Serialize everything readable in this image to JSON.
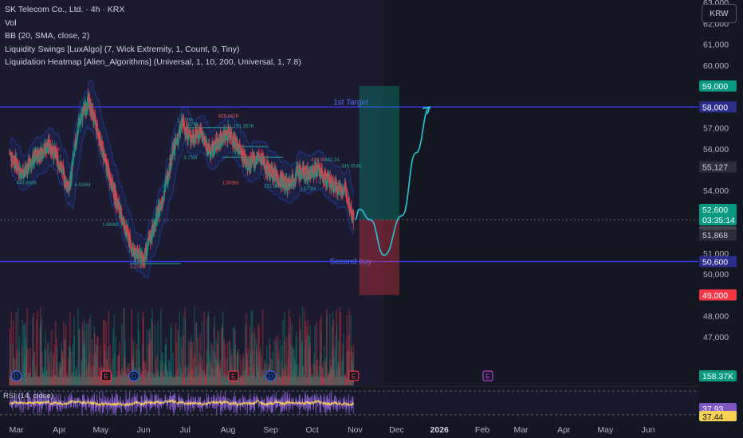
{
  "header": {
    "symbol_line": "SK Telecom Co., Ltd. · 4h · KRX",
    "indicators": [
      "Vol",
      "BB (20, SMA, close, 2)",
      "Liquidity Swings [LuxAlgo] (7, Wick Extremity, 1, Count, 0, Tiny)",
      "Liquidation Heatmap [Alien_Algorithms] (Universal, 1, 10, 200, Universal, 1, 7.8)"
    ]
  },
  "currency_button": "KRW",
  "price_axis": {
    "ticks": [
      "63,000",
      "62,000",
      "61,000",
      "60,000",
      "57,000",
      "56,000",
      "54,000",
      "51,000",
      "50,000",
      "48,000",
      "47,000"
    ],
    "labels": [
      {
        "text": "59,000",
        "bg": "#089981",
        "fg": "#ffffff"
      },
      {
        "text": "58,000",
        "bg": "#2a2e8a",
        "fg": "#ffffff"
      },
      {
        "text": "55,127",
        "bg": "#2a2e39",
        "fg": "#d1d4dc"
      },
      {
        "text": "52,600",
        "bg": "#089981",
        "fg": "#ffffff"
      },
      {
        "text": "03:35:14",
        "bg": "#089981",
        "fg": "#ffffff"
      },
      {
        "text": "52,600",
        "bg": "#434651",
        "fg": "#ffffff"
      },
      {
        "text": "51,868",
        "bg": "#2a2e39",
        "fg": "#d1d4dc"
      },
      {
        "text": "50,600",
        "bg": "#2a2e8a",
        "fg": "#ffffff"
      },
      {
        "text": "49,000",
        "bg": "#f23645",
        "fg": "#ffffff"
      },
      {
        "text": "158.37K",
        "bg": "#089981",
        "fg": "#ffffff"
      }
    ]
  },
  "time_axis": {
    "labels": [
      {
        "text": "Mar",
        "value": "2025-03"
      },
      {
        "text": "Apr",
        "value": "2025-04"
      },
      {
        "text": "May",
        "value": "2025-05"
      },
      {
        "text": "Jun",
        "value": "2025-06"
      },
      {
        "text": "Jul",
        "value": "2025-07"
      },
      {
        "text": "Aug",
        "value": "2025-08"
      },
      {
        "text": "Sep",
        "value": "2025-09"
      },
      {
        "text": "Oct",
        "value": "2025-10"
      },
      {
        "text": "Nov",
        "value": "2025-11"
      },
      {
        "text": "Dec",
        "value": "2025-12"
      },
      {
        "text": "2026",
        "value": "2026-01"
      },
      {
        "text": "Feb",
        "value": "2026-02"
      },
      {
        "text": "Mar",
        "value": "2026-03"
      },
      {
        "text": "Apr",
        "value": "2026-04"
      },
      {
        "text": "May",
        "value": "2026-05"
      },
      {
        "text": "Jun",
        "value": "2026-06"
      }
    ]
  },
  "annotations": {
    "target_line": {
      "label": "1st Target",
      "price": 58000
    },
    "second_buy_line": {
      "label": "Second buy",
      "price": 50600
    },
    "position": {
      "target": 59000,
      "entry": 52600,
      "stop": 49000
    },
    "swing_labels": [
      "443.966K",
      "803.863K",
      "4.526M",
      "1.869M",
      "1.210M",
      "1.987M",
      "379K",
      "428.642K",
      "151.367K",
      "3.73M",
      "1.003M",
      "151.846K",
      "3.573M",
      "477.05",
      "462.24",
      "345.054K"
    ]
  },
  "rsi": {
    "label": "RSI (14, close)",
    "value": "37.93",
    "ma_value": "37.44"
  },
  "event_markers": [
    {
      "type": "D",
      "date": "2025-03-01"
    },
    {
      "type": "E",
      "date": "2025-05-05"
    },
    {
      "type": "D",
      "date": "2025-05-25"
    },
    {
      "type": "E",
      "date": "2025-08-05"
    },
    {
      "type": "D",
      "date": "2025-09-01"
    },
    {
      "type": "E",
      "date": "2025-10-31"
    },
    {
      "type": "E",
      "date": "2026-02-05"
    }
  ],
  "colors": {
    "up": "#089981",
    "down": "#f23645",
    "target": "#3d3dff",
    "projection": "#26c6da",
    "rsi": "#7e57c2",
    "rsi_ma": "#f7d154"
  },
  "chart_data": {
    "type": "candlestick",
    "symbol": "SK Telecom Co., Ltd.",
    "interval": "4h",
    "y_range": [
      46500,
      63500
    ],
    "close_path": [
      {
        "x": "2025-02-24",
        "y": 55800
      },
      {
        "x": "2025-03-05",
        "y": 54800
      },
      {
        "x": "2025-03-15",
        "y": 55600
      },
      {
        "x": "2025-03-25",
        "y": 56200
      },
      {
        "x": "2025-04-01",
        "y": 55300
      },
      {
        "x": "2025-04-08",
        "y": 54000
      },
      {
        "x": "2025-04-15",
        "y": 57200
      },
      {
        "x": "2025-04-22",
        "y": 58300
      },
      {
        "x": "2025-04-28",
        "y": 57000
      },
      {
        "x": "2025-05-05",
        "y": 55200
      },
      {
        "x": "2025-05-12",
        "y": 53600
      },
      {
        "x": "2025-05-18",
        "y": 52300
      },
      {
        "x": "2025-05-25",
        "y": 51000
      },
      {
        "x": "2025-06-01",
        "y": 50700
      },
      {
        "x": "2025-06-08",
        "y": 52200
      },
      {
        "x": "2025-06-15",
        "y": 53700
      },
      {
        "x": "2025-06-22",
        "y": 55800
      },
      {
        "x": "2025-06-29",
        "y": 57200
      },
      {
        "x": "2025-07-05",
        "y": 56500
      },
      {
        "x": "2025-07-12",
        "y": 56800
      },
      {
        "x": "2025-07-19",
        "y": 55800
      },
      {
        "x": "2025-07-26",
        "y": 56400
      },
      {
        "x": "2025-08-02",
        "y": 56800
      },
      {
        "x": "2025-08-09",
        "y": 56000
      },
      {
        "x": "2025-08-16",
        "y": 55200
      },
      {
        "x": "2025-08-23",
        "y": 55600
      },
      {
        "x": "2025-08-30",
        "y": 55000
      },
      {
        "x": "2025-09-06",
        "y": 54600
      },
      {
        "x": "2025-09-13",
        "y": 54300
      },
      {
        "x": "2025-09-20",
        "y": 54900
      },
      {
        "x": "2025-09-27",
        "y": 54800
      },
      {
        "x": "2025-10-04",
        "y": 55000
      },
      {
        "x": "2025-10-11",
        "y": 54500
      },
      {
        "x": "2025-10-18",
        "y": 54200
      },
      {
        "x": "2025-10-25",
        "y": 54000
      },
      {
        "x": "2025-10-31",
        "y": 52600
      }
    ],
    "projection": [
      {
        "x": "2025-11-01",
        "y": 52600
      },
      {
        "x": "2025-11-04",
        "y": 53100
      },
      {
        "x": "2025-11-12",
        "y": 52600
      },
      {
        "x": "2025-11-22",
        "y": 50900
      },
      {
        "x": "2025-12-05",
        "y": 52800
      },
      {
        "x": "2025-12-15",
        "y": 55800
      },
      {
        "x": "2025-12-25",
        "y": 58000
      }
    ]
  }
}
